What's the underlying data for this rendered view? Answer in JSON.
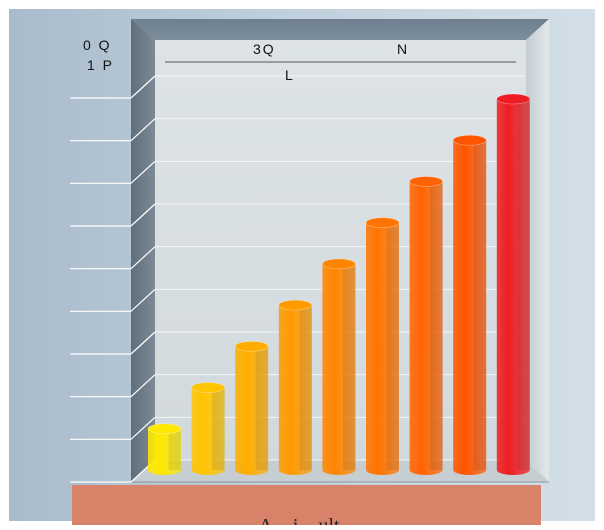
{
  "chart_data": {
    "type": "bar",
    "style": "3d-cylinder",
    "values": [
      1,
      2,
      3,
      4,
      5,
      6,
      7,
      8,
      9
    ],
    "ylim": [
      0,
      9
    ],
    "grid": true,
    "bar_colors": [
      "#ffe800",
      "#ffc400",
      "#ffad00",
      "#ff9a00",
      "#ff8500",
      "#ff7400",
      "#ff6400",
      "#ff5500",
      "#ee1d23"
    ],
    "corner_labels": [
      "0 Q",
      "1 P"
    ],
    "header_labels": [
      {
        "text": "3Q"
      },
      {
        "text": "N"
      },
      {
        "text": "L"
      }
    ],
    "footer_text": "A... i... ult..."
  },
  "colors": {
    "panel_bg": "#bfcfdb",
    "plot_back": "#d7dde0",
    "frame_top": "#6e808f",
    "frame_side": "#6a7985",
    "frame_right": "#cfd6da",
    "footer_bg": "#d8826a"
  }
}
